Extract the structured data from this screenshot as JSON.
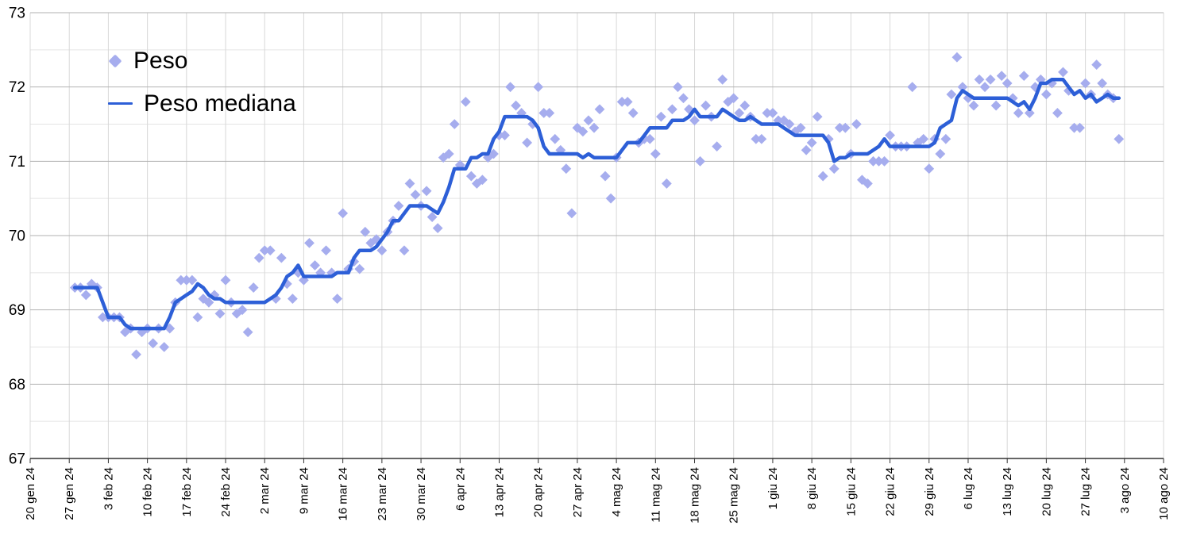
{
  "legend": {
    "peso_label": "Peso",
    "mediana_label": "Peso mediana"
  },
  "colors": {
    "scatter": "#a6adee",
    "median_line": "#2d5fd7",
    "grid_major": "#b2b2b2",
    "grid_minor": "#e4e4e4",
    "grid_vertical": "#d8d8d8",
    "axis_line": "#333333",
    "label_text": "#000000",
    "background": "#ffffff"
  },
  "chart_data": {
    "type": "scatter",
    "title": "",
    "xlabel": "",
    "ylabel": "",
    "grid": true,
    "legend_position": "top-left-inside",
    "x_axis": {
      "tick_interval_days": 7,
      "axis_span_days": 203,
      "tick_labels": [
        "20 gen 24",
        "27 gen 24",
        "3 feb 24",
        "10 feb 24",
        "17 feb 24",
        "24 feb 24",
        "2 mar 24",
        "9 mar 24",
        "16 mar 24",
        "23 mar 24",
        "30 mar 24",
        "6 apr 24",
        "13 apr 24",
        "20 apr 24",
        "27 apr 24",
        "4 mag 24",
        "11 mag 24",
        "18 mag 24",
        "25 mag 24",
        "1 giu 24",
        "8 giu 24",
        "15 giu 24",
        "22 giu 24",
        "29 giu 24",
        "6 lug 24",
        "13 lug 24",
        "20 lug 24",
        "27 lug 24",
        "3 ago 24",
        "10 ago 24"
      ]
    },
    "y_axis": {
      "min": 67,
      "max": 73,
      "major_step": 1,
      "minor_step": 0.5,
      "tick_labels": [
        "73",
        "72",
        "71",
        "70",
        "69",
        "68",
        "67"
      ]
    },
    "series": [
      {
        "name": "Peso",
        "render": "scatter",
        "marker": "diamond",
        "day_offset_from_axis_start": 8,
        "values": [
          69.3,
          69.3,
          69.2,
          69.35,
          69.3,
          68.9,
          68.9,
          68.9,
          68.9,
          68.7,
          68.75,
          68.4,
          68.7,
          68.75,
          68.55,
          68.75,
          68.5,
          68.75,
          69.1,
          69.4,
          69.4,
          69.4,
          68.9,
          69.15,
          69.1,
          69.2,
          68.95,
          69.4,
          69.1,
          68.95,
          69.0,
          68.7,
          69.3,
          69.7,
          69.8,
          69.8,
          69.15,
          69.7,
          69.35,
          69.15,
          69.5,
          69.4,
          69.9,
          69.6,
          69.5,
          69.8,
          69.5,
          69.15,
          70.3,
          69.55,
          69.65,
          69.55,
          70.05,
          69.9,
          69.95,
          69.8,
          70.05,
          70.2,
          70.4,
          69.8,
          70.7,
          70.55,
          70.4,
          70.6,
          70.25,
          70.1,
          71.05,
          71.1,
          71.5,
          70.95,
          71.8,
          70.8,
          70.7,
          70.75,
          71.05,
          71.1,
          71.35,
          71.35,
          72.0,
          71.75,
          71.65,
          71.25,
          71.5,
          72.0,
          71.65,
          71.65,
          71.3,
          71.15,
          70.9,
          70.3,
          71.45,
          71.4,
          71.55,
          71.45,
          71.7,
          70.8,
          70.5,
          71.05,
          71.8,
          71.8,
          71.65,
          71.25,
          71.3,
          71.3,
          71.1,
          71.6,
          70.7,
          71.7,
          72.0,
          71.85,
          71.7,
          71.55,
          71.0,
          71.75,
          71.6,
          71.2,
          72.1,
          71.8,
          71.85,
          71.65,
          71.75,
          71.6,
          71.3,
          71.3,
          71.65,
          71.65,
          71.55,
          71.55,
          71.5,
          71.4,
          71.45,
          71.15,
          71.25,
          71.6,
          70.8,
          71.3,
          70.9,
          71.45,
          71.45,
          71.1,
          71.5,
          70.75,
          70.7,
          71.0,
          71.0,
          71.0,
          71.35,
          71.2,
          71.2,
          71.2,
          72.0,
          71.25,
          71.3,
          70.9,
          71.3,
          71.1,
          71.3,
          71.9,
          72.4,
          72.0,
          71.85,
          71.75,
          72.1,
          72.0,
          72.1,
          71.75,
          72.15,
          72.05,
          71.85,
          71.65,
          72.15,
          71.65,
          72.0,
          72.1,
          71.9,
          72.05,
          71.65,
          72.2,
          71.95,
          71.45,
          71.45,
          72.05,
          71.9,
          72.3,
          72.05,
          71.9,
          71.85,
          71.3
        ]
      },
      {
        "name": "Peso mediana",
        "render": "line",
        "day_offset_from_axis_start": 8,
        "values": [
          69.3,
          69.3,
          69.3,
          69.3,
          69.3,
          69.1,
          68.9,
          68.9,
          68.9,
          68.8,
          68.75,
          68.75,
          68.75,
          68.75,
          68.75,
          68.75,
          68.75,
          68.9,
          69.1,
          69.15,
          69.2,
          69.25,
          69.35,
          69.3,
          69.2,
          69.15,
          69.15,
          69.1,
          69.1,
          69.1,
          69.1,
          69.1,
          69.1,
          69.1,
          69.1,
          69.15,
          69.2,
          69.3,
          69.45,
          69.5,
          69.6,
          69.45,
          69.45,
          69.45,
          69.45,
          69.45,
          69.45,
          69.5,
          69.5,
          69.5,
          69.7,
          69.8,
          69.8,
          69.8,
          69.85,
          69.95,
          70.05,
          70.2,
          70.2,
          70.3,
          70.4,
          70.4,
          70.4,
          70.4,
          70.35,
          70.3,
          70.45,
          70.65,
          70.9,
          70.9,
          70.9,
          71.05,
          71.05,
          71.1,
          71.1,
          71.3,
          71.4,
          71.6,
          71.6,
          71.6,
          71.6,
          71.6,
          71.55,
          71.45,
          71.2,
          71.1,
          71.1,
          71.1,
          71.1,
          71.1,
          71.1,
          71.05,
          71.1,
          71.05,
          71.05,
          71.05,
          71.05,
          71.05,
          71.15,
          71.25,
          71.25,
          71.25,
          71.35,
          71.45,
          71.45,
          71.45,
          71.45,
          71.55,
          71.55,
          71.55,
          71.6,
          71.7,
          71.6,
          71.6,
          71.6,
          71.6,
          71.7,
          71.65,
          71.6,
          71.55,
          71.55,
          71.6,
          71.55,
          71.5,
          71.5,
          71.5,
          71.5,
          71.45,
          71.4,
          71.35,
          71.35,
          71.35,
          71.35,
          71.35,
          71.35,
          71.25,
          71.0,
          71.05,
          71.05,
          71.1,
          71.1,
          71.1,
          71.1,
          71.15,
          71.2,
          71.3,
          71.2,
          71.2,
          71.2,
          71.2,
          71.2,
          71.2,
          71.2,
          71.2,
          71.25,
          71.45,
          71.5,
          71.55,
          71.85,
          71.95,
          71.9,
          71.85,
          71.85,
          71.85,
          71.85,
          71.85,
          71.85,
          71.85,
          71.8,
          71.75,
          71.8,
          71.7,
          71.85,
          72.05,
          72.05,
          72.1,
          72.1,
          72.1,
          72.0,
          71.9,
          71.95,
          71.85,
          71.9,
          71.8,
          71.85,
          71.9,
          71.85,
          71.85
        ]
      }
    ]
  }
}
